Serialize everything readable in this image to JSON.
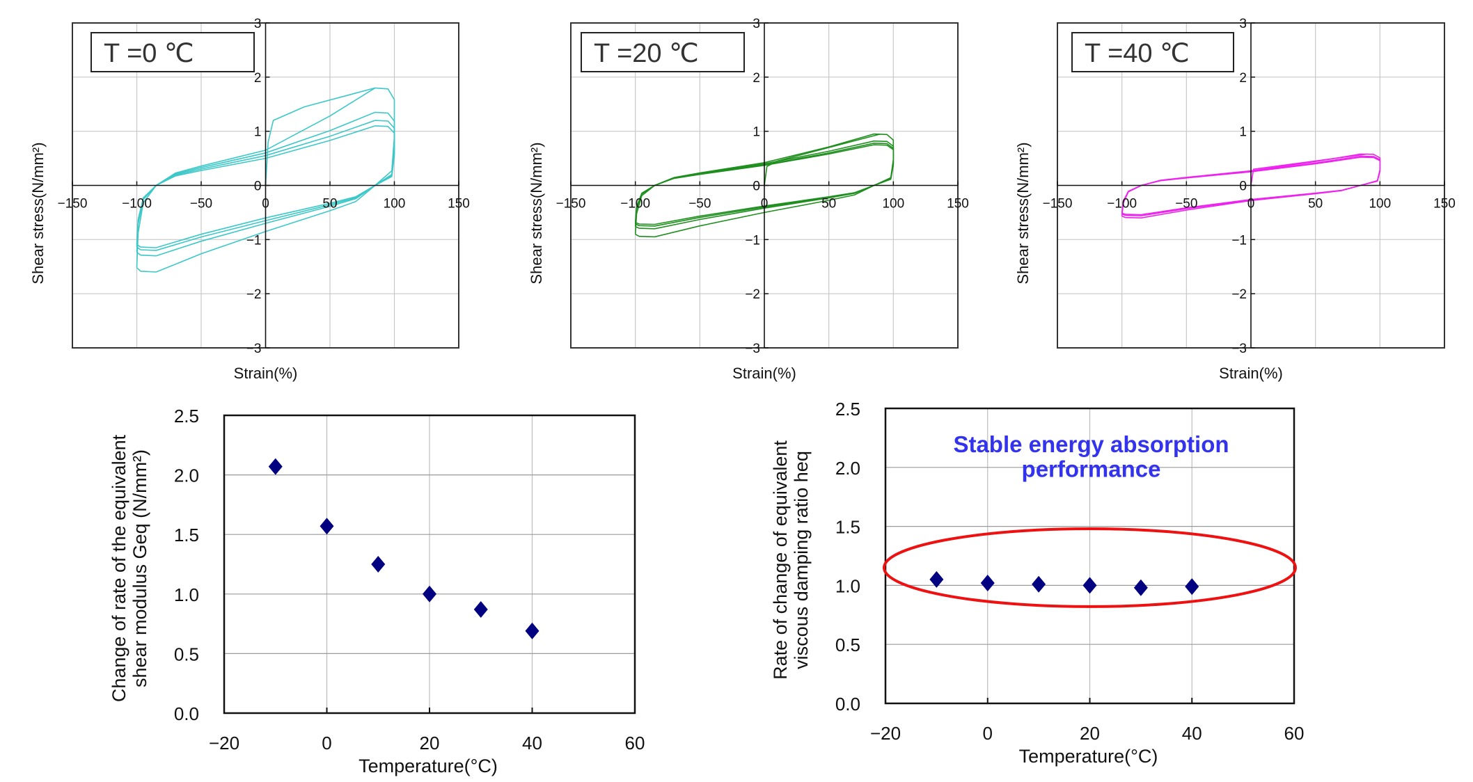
{
  "chart_data": [
    {
      "type": "line",
      "title": "T =0 ℃",
      "xlabel": "Strain(%)",
      "ylabel": "Shear stress(N/mm²)",
      "xlim": [
        -150,
        150
      ],
      "ylim": [
        -3,
        3
      ],
      "xticks": [
        "−150",
        "−100",
        "−50",
        "0",
        "50",
        "100",
        "150"
      ],
      "yticks": [
        "3",
        "2",
        "1",
        "0",
        "−1",
        "−2",
        "−3"
      ],
      "grid": true,
      "color": "#3cc8c8",
      "loops": [
        {
          "peak_pos": 1.8,
          "peak_neg": -1.6,
          "zero_cross_up": 0.65,
          "zero_cross_down": -0.85
        },
        {
          "peak_pos": 1.35,
          "peak_neg": -1.3,
          "zero_cross_up": 0.6,
          "zero_cross_down": -0.7
        },
        {
          "peak_pos": 1.2,
          "peak_neg": -1.2,
          "zero_cross_up": 0.55,
          "zero_cross_down": -0.65
        },
        {
          "peak_pos": 1.1,
          "peak_neg": -1.15,
          "zero_cross_up": 0.5,
          "zero_cross_down": -0.6
        }
      ],
      "initial_loading": [
        [
          0,
          0
        ],
        [
          2,
          0.8
        ],
        [
          6,
          1.2
        ],
        [
          30,
          1.45
        ],
        [
          85,
          1.8
        ]
      ]
    },
    {
      "type": "line",
      "title": "T =20 ℃",
      "xlabel": "Strain(%)",
      "ylabel": "Shear stress(N/mm²)",
      "xlim": [
        -150,
        150
      ],
      "ylim": [
        -3,
        3
      ],
      "xticks": [
        "−150",
        "−100",
        "−50",
        "0",
        "50",
        "100",
        "150"
      ],
      "yticks": [
        "3",
        "2",
        "1",
        "0",
        "−1",
        "−2",
        "−3"
      ],
      "grid": true,
      "color": "#1f8f1f",
      "loops": [
        {
          "peak_pos": 0.95,
          "peak_neg": -0.95,
          "zero_cross_up": 0.42,
          "zero_cross_down": -0.5
        },
        {
          "peak_pos": 0.82,
          "peak_neg": -0.8,
          "zero_cross_up": 0.4,
          "zero_cross_down": -0.42
        },
        {
          "peak_pos": 0.78,
          "peak_neg": -0.75,
          "zero_cross_up": 0.38,
          "zero_cross_down": -0.4
        },
        {
          "peak_pos": 0.75,
          "peak_neg": -0.72,
          "zero_cross_up": 0.37,
          "zero_cross_down": -0.38
        }
      ],
      "initial_loading": [
        [
          0,
          0
        ],
        [
          2,
          0.35
        ],
        [
          10,
          0.45
        ],
        [
          90,
          0.95
        ]
      ]
    },
    {
      "type": "line",
      "title": "T =40 ℃",
      "xlabel": "Strain(%)",
      "ylabel": "Shear stress(N/mm²)",
      "xlim": [
        -150,
        150
      ],
      "ylim": [
        -3,
        3
      ],
      "xticks": [
        "−150",
        "−100",
        "−50",
        "0",
        "50",
        "100",
        "150"
      ],
      "yticks": [
        "3",
        "2",
        "1",
        "0",
        "−1",
        "−2",
        "−3"
      ],
      "grid": true,
      "color": "#ee22ee",
      "loops": [
        {
          "peak_pos": 0.58,
          "peak_neg": -0.6,
          "zero_cross_up": 0.27,
          "zero_cross_down": -0.28
        },
        {
          "peak_pos": 0.54,
          "peak_neg": -0.56,
          "zero_cross_up": 0.26,
          "zero_cross_down": -0.27
        },
        {
          "peak_pos": 0.52,
          "peak_neg": -0.54,
          "zero_cross_up": 0.25,
          "zero_cross_down": -0.26
        }
      ],
      "initial_loading": [
        [
          0,
          0
        ],
        [
          2,
          0.3
        ],
        [
          90,
          0.58
        ]
      ]
    },
    {
      "type": "scatter",
      "title": "",
      "xlabel": "Temperature(°C)",
      "ylabel_line1": "Change of rate of the equivalent",
      "ylabel_line2": "shear modulus Geq (N/mm²)",
      "xlim": [
        -20,
        60
      ],
      "ylim": [
        0,
        2.5
      ],
      "xticks": [
        "−20",
        "0",
        "20",
        "40",
        "60"
      ],
      "yticks": [
        "2.5",
        "2.0",
        "1.5",
        "1.0",
        "0.5",
        "0.0"
      ],
      "grid": true,
      "marker": "diamond",
      "color": "#000080",
      "x": [
        -10,
        0,
        10,
        20,
        30,
        40
      ],
      "y": [
        2.07,
        1.57,
        1.25,
        1.0,
        0.87,
        0.69
      ]
    },
    {
      "type": "scatter",
      "title": "",
      "xlabel": "Temperature(°C)",
      "ylabel_line1": "Rate of  change of equivalent",
      "ylabel_line2": "viscous damping ratio heq",
      "xlim": [
        -20,
        60
      ],
      "ylim": [
        0,
        2.5
      ],
      "xticks": [
        "−20",
        "0",
        "20",
        "40",
        "60"
      ],
      "yticks": [
        "2.5",
        "2.0",
        "1.5",
        "1.0",
        "0.5",
        "0.0"
      ],
      "grid": true,
      "marker": "diamond",
      "color": "#000080",
      "x": [
        -10,
        0,
        10,
        20,
        30,
        40
      ],
      "y": [
        1.05,
        1.02,
        1.01,
        1.0,
        0.98,
        0.99
      ],
      "annotation_line1": "Stable energy absorption",
      "annotation_line2": "performance",
      "annotation_color": "#3333ee",
      "highlight_ellipse_color": "#ee1111",
      "highlight_ellipse_range": {
        "x": [
          -20,
          60
        ],
        "y": [
          0.82,
          1.48
        ]
      }
    }
  ]
}
